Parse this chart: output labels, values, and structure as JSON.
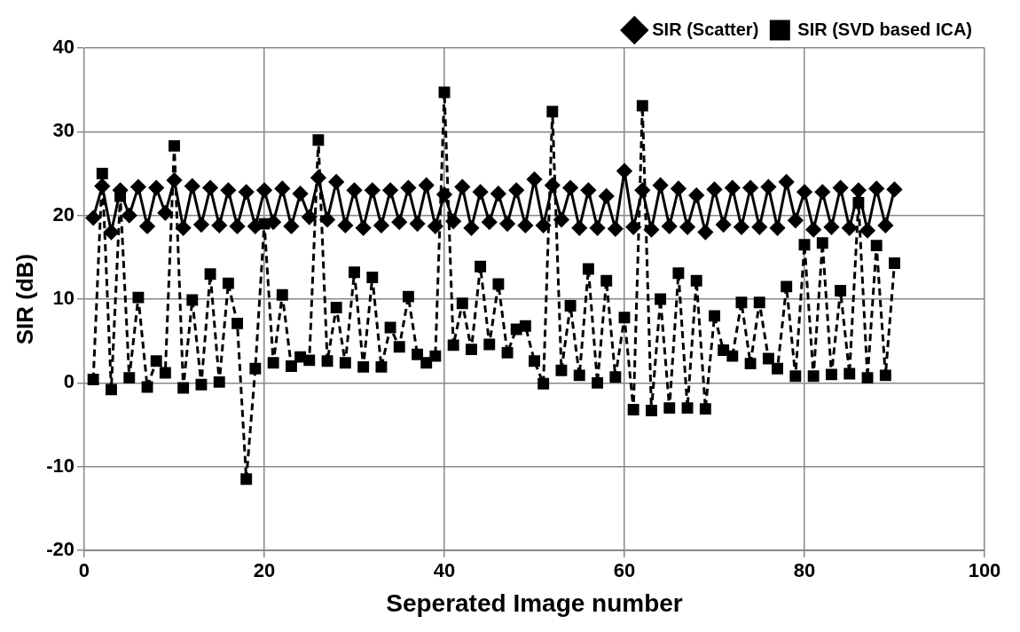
{
  "chart_data": {
    "type": "line",
    "xlabel": "Seperated Image number",
    "ylabel": "SIR (dB)",
    "x": [
      1,
      2,
      3,
      4,
      5,
      6,
      7,
      8,
      9,
      10,
      11,
      12,
      13,
      14,
      15,
      16,
      17,
      18,
      19,
      20,
      21,
      22,
      23,
      24,
      25,
      26,
      27,
      28,
      29,
      30,
      31,
      32,
      33,
      34,
      35,
      36,
      37,
      38,
      39,
      40,
      41,
      42,
      43,
      44,
      45,
      46,
      47,
      48,
      49,
      50,
      51,
      52,
      53,
      54,
      55,
      56,
      57,
      58,
      59,
      60,
      61,
      62,
      63,
      64,
      65,
      66,
      67,
      68,
      69,
      70,
      71,
      72,
      73,
      74,
      75,
      76,
      77,
      78,
      79,
      80,
      81,
      82,
      83,
      84,
      85,
      86,
      87,
      88,
      89,
      90
    ],
    "xlim": [
      0,
      100
    ],
    "xticks": [
      0,
      20,
      40,
      60,
      80,
      100
    ],
    "ylim": [
      -20,
      40
    ],
    "yticks": [
      -20,
      -10,
      0,
      10,
      20,
      30,
      40
    ],
    "grid": true,
    "legend": "top right",
    "series": [
      {
        "name": "SIR (Scatter)",
        "color": "#000000",
        "marker": "diamond",
        "line_style": "solid",
        "values": [
          19.7,
          23.5,
          18,
          23,
          20,
          23.4,
          18.7,
          23.3,
          20.3,
          24.2,
          18.5,
          23.5,
          18.9,
          23.3,
          18.8,
          23,
          18.7,
          22.8,
          18.7,
          23,
          19.2,
          23.2,
          18.7,
          22.6,
          19.8,
          24.5,
          19.5,
          24,
          18.8,
          23,
          18.5,
          23,
          18.8,
          23,
          19.2,
          23.3,
          19,
          23.6,
          18.7,
          22.5,
          19.3,
          23.4,
          18.5,
          22.8,
          19.2,
          22.6,
          19,
          23,
          18.8,
          24.3,
          18.8,
          23.6,
          19.5,
          23.3,
          18.5,
          23,
          18.5,
          22.3,
          18.4,
          25.3,
          18.6,
          23,
          18.3,
          23.6,
          18.7,
          23.2,
          18.6,
          22.4,
          18,
          23.1,
          18.9,
          23.3,
          18.6,
          23.3,
          18.6,
          23.4,
          18.5,
          24,
          19.4,
          22.8,
          18.3,
          22.8,
          18.6,
          23.3,
          18.5,
          23,
          18.2,
          23.2,
          18.8,
          23.1
        ]
      },
      {
        "name": "SIR (SVD based ICA)",
        "color": "#000000",
        "marker": "square",
        "line_style": "dashed",
        "values": [
          0.4,
          25,
          -0.8,
          22.3,
          0.6,
          10.2,
          -0.5,
          2.6,
          1.2,
          28.3,
          -0.6,
          9.9,
          -0.2,
          13,
          0.1,
          11.9,
          7.1,
          -11.5,
          1.7,
          19,
          2.4,
          10.5,
          2,
          3.1,
          2.7,
          29,
          2.6,
          9,
          2.4,
          13.2,
          1.9,
          12.6,
          1.9,
          6.6,
          4.3,
          10.3,
          3.4,
          2.4,
          3.2,
          34.7,
          4.5,
          9.5,
          4,
          13.9,
          4.6,
          11.8,
          3.6,
          6.4,
          6.8,
          2.6,
          -0.1,
          32.4,
          1.5,
          9.2,
          0.9,
          13.6,
          0,
          12.2,
          0.7,
          7.8,
          -3.2,
          33.1,
          -3.3,
          10,
          -3,
          13.1,
          -3,
          12.2,
          -3.1,
          8,
          3.9,
          3.2,
          9.6,
          2.3,
          9.6,
          2.9,
          1.7,
          11.5,
          0.8,
          16.5,
          0.8,
          16.7,
          1,
          11,
          1.1,
          21.5,
          0.6,
          16.4,
          0.9,
          14.3
        ]
      }
    ]
  }
}
